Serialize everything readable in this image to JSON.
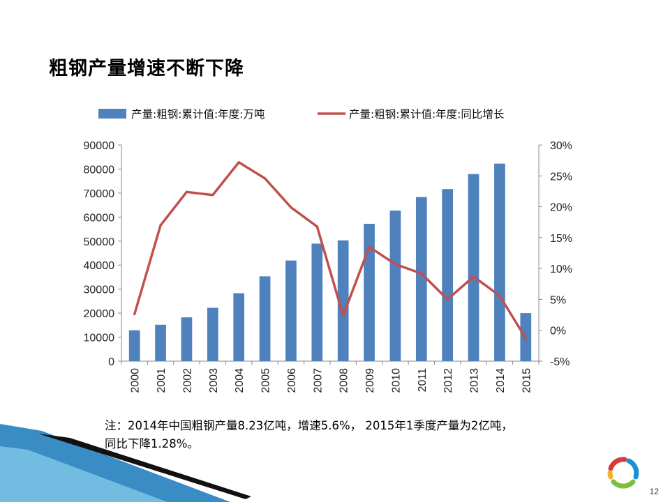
{
  "slide": {
    "title": "粗钢产量增速不断下降",
    "note_line1": "注：2014年中国粗钢产量8.23亿吨，增速5.6%， 2015年1季度产量为2亿吨，",
    "note_line2": "同比下降1.28%。",
    "page_number": "12"
  },
  "colors": {
    "bar": "#4f81bd",
    "line": "#c0504d",
    "deco_blue": "#2e7fb8",
    "deco_black": "#111111"
  },
  "chart_data": {
    "type": "bar",
    "title": "",
    "categories": [
      "2000",
      "2001",
      "2002",
      "2003",
      "2004",
      "2005",
      "2006",
      "2007",
      "2008",
      "2009",
      "2010",
      "2011",
      "2012",
      "2013",
      "2014",
      "2015"
    ],
    "series": [
      {
        "name": "产量:粗钢:累计值:年度:万吨",
        "type": "bar",
        "axis": "left",
        "values": [
          12850,
          15160,
          18240,
          22230,
          28290,
          35320,
          41910,
          48930,
          50300,
          57200,
          62700,
          68330,
          71650,
          77900,
          82270,
          20000
        ]
      },
      {
        "name": "产量:粗钢:累计值:年度:同比增长",
        "type": "line",
        "axis": "right",
        "values": [
          2.6,
          17.0,
          22.4,
          21.9,
          27.2,
          24.6,
          19.9,
          16.8,
          2.4,
          13.5,
          10.7,
          9.2,
          5.0,
          8.7,
          5.6,
          -1.3
        ]
      }
    ],
    "y_left": {
      "range": [
        0,
        90000
      ],
      "ticks": [
        "0",
        "10000",
        "20000",
        "30000",
        "40000",
        "50000",
        "60000",
        "70000",
        "80000",
        "90000"
      ]
    },
    "y_right": {
      "range": [
        -5,
        30
      ],
      "ticks": [
        "-5%",
        "0%",
        "5%",
        "10%",
        "15%",
        "20%",
        "25%",
        "30%"
      ]
    },
    "grid": false,
    "legend_position": "top"
  }
}
